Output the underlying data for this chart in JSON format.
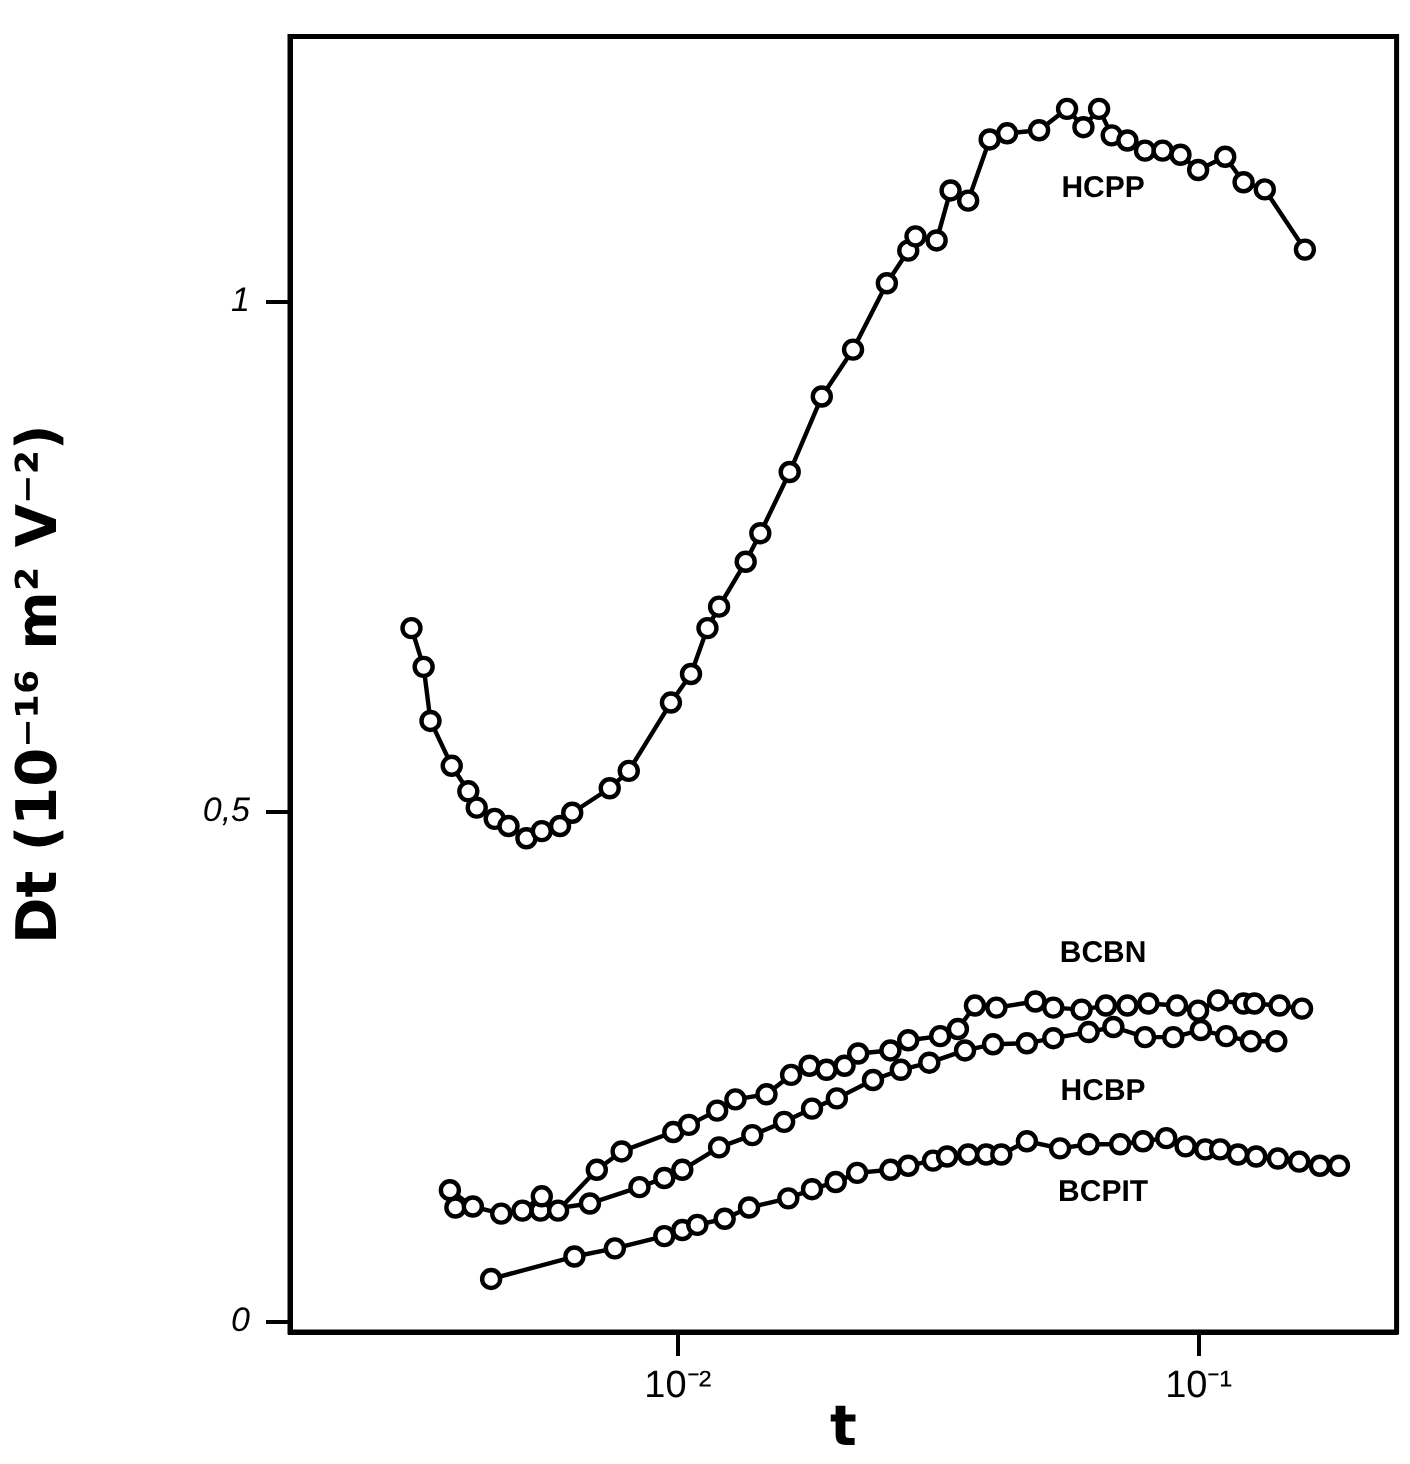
{
  "chart_data": {
    "type": "line",
    "xlabel": "t",
    "ylabel": "Dt (10⁻¹⁶ m² V⁻²)",
    "log": "x",
    "xlim": [
      0.0018,
      0.24
    ],
    "xticks": [
      {
        "value": 0.01,
        "label": "10⁻²"
      },
      {
        "value": 0.1,
        "label": "10⁻¹"
      }
    ],
    "ylim": [
      -0.01,
      1.26
    ],
    "yticks": [
      0,
      {
        "value": 0.5,
        "label": "0,5"
      },
      1
    ],
    "marker": "circle",
    "line_style": "solid",
    "series": [
      {
        "name": "HCPP",
        "color": "#000000",
        "x": [
          0.00308,
          0.00325,
          0.00335,
          0.00368,
          0.00396,
          0.00411,
          0.00445,
          0.00473,
          0.00512,
          0.00548,
          0.00594,
          0.00627,
          0.0074,
          0.00805,
          0.0097,
          0.0106,
          0.0114,
          0.012,
          0.0135,
          0.0144,
          0.0164,
          0.0189,
          0.0217,
          0.0252,
          0.0277,
          0.0286,
          0.0314,
          0.0334,
          0.0361,
          0.0397,
          0.0429,
          0.0494,
          0.0559,
          0.0601,
          0.0644,
          0.0681,
          0.073,
          0.0789,
          0.0853,
          0.0923,
          0.0998,
          0.1125,
          0.122,
          0.134,
          0.16
        ],
        "values": [
          0.68,
          0.642,
          0.589,
          0.545,
          0.52,
          0.504,
          0.493,
          0.486,
          0.474,
          0.481,
          0.486,
          0.499,
          0.523,
          0.54,
          0.607,
          0.635,
          0.68,
          0.701,
          0.745,
          0.773,
          0.833,
          0.907,
          0.953,
          1.018,
          1.05,
          1.064,
          1.06,
          1.109,
          1.099,
          1.159,
          1.165,
          1.168,
          1.189,
          1.171,
          1.189,
          1.163,
          1.158,
          1.148,
          1.148,
          1.144,
          1.129,
          1.142,
          1.117,
          1.11,
          1.051
        ]
      },
      {
        "name": "BCBN",
        "color": "#000000",
        "x": [
          0.00365,
          0.00404,
          0.00458,
          0.00503,
          0.00548,
          0.00589,
          0.00699,
          0.0078,
          0.0098,
          0.0105,
          0.0119,
          0.0129,
          0.0148,
          0.0165,
          0.0179,
          0.0193,
          0.0209,
          0.0222,
          0.0256,
          0.0277,
          0.0319,
          0.0345,
          0.0372,
          0.0409,
          0.0486,
          0.0526,
          0.0596,
          0.0664,
          0.073,
          0.0801,
          0.0909,
          0.0998,
          0.109,
          0.122,
          0.128,
          0.143,
          0.158
        ],
        "values": [
          0.129,
          0.113,
          0.106,
          0.109,
          0.123,
          0.109,
          0.149,
          0.167,
          0.186,
          0.193,
          0.207,
          0.218,
          0.223,
          0.242,
          0.251,
          0.247,
          0.251,
          0.263,
          0.266,
          0.276,
          0.28,
          0.287,
          0.31,
          0.308,
          0.314,
          0.308,
          0.306,
          0.31,
          0.31,
          0.312,
          0.31,
          0.305,
          0.315,
          0.312,
          0.312,
          0.31,
          0.307
        ]
      },
      {
        "name": "HCBP",
        "color": "#000000",
        "x": [
          0.00374,
          0.00458,
          0.00545,
          0.00678,
          0.00844,
          0.00942,
          0.0102,
          0.012,
          0.0139,
          0.016,
          0.0181,
          0.0202,
          0.0237,
          0.0268,
          0.0304,
          0.0356,
          0.0403,
          0.0468,
          0.0526,
          0.0615,
          0.0686,
          0.0789,
          0.0894,
          0.101,
          0.113,
          0.126,
          0.141
        ],
        "values": [
          0.112,
          null,
          0.109,
          0.116,
          0.132,
          0.141,
          0.149,
          0.171,
          0.183,
          0.196,
          0.209,
          0.219,
          0.237,
          0.247,
          0.254,
          0.266,
          0.272,
          0.273,
          0.278,
          0.284,
          0.289,
          0.279,
          0.279,
          0.286,
          0.28,
          0.275,
          0.275
        ]
      },
      {
        "name": "BCPIT",
        "color": "#000000",
        "x": [
          0.00438,
          0.00633,
          0.00757,
          0.00942,
          0.0102,
          0.0109,
          0.0123,
          0.0137,
          0.0163,
          0.0181,
          0.0201,
          0.0221,
          0.0256,
          0.0277,
          0.0309,
          0.0329,
          0.0361,
          0.0391,
          0.0418,
          0.0468,
          0.0542,
          0.0615,
          0.0707,
          0.0782,
          0.0867,
          0.0944,
          0.103,
          0.11,
          0.119,
          0.129,
          0.142,
          0.156,
          0.171,
          0.186
        ],
        "values": [
          0.042,
          0.064,
          0.072,
          0.084,
          0.09,
          0.095,
          0.101,
          0.112,
          0.121,
          0.13,
          0.137,
          0.146,
          0.149,
          0.153,
          0.158,
          0.162,
          0.164,
          0.164,
          0.164,
          0.177,
          0.17,
          0.174,
          0.174,
          0.177,
          0.18,
          0.172,
          0.169,
          0.169,
          0.164,
          0.162,
          0.16,
          0.157,
          0.153,
          0.153
        ]
      }
    ]
  }
}
